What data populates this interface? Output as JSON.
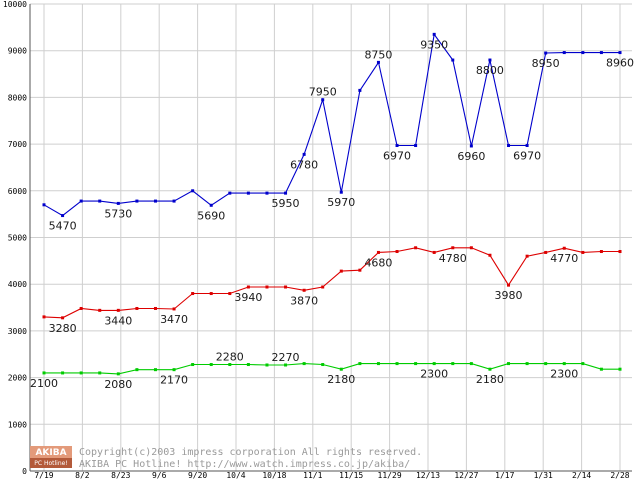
{
  "chart_data": {
    "type": "line",
    "ylim": [
      0,
      10000
    ],
    "yticks": [
      0,
      1000,
      2000,
      3000,
      4000,
      5000,
      6000,
      7000,
      8000,
      9000,
      10000
    ],
    "xticks": [
      "7/19",
      "8/2",
      "8/23",
      "9/6",
      "9/20",
      "10/4",
      "10/18",
      "11/1",
      "11/15",
      "11/29",
      "12/13",
      "12/27",
      "1/17",
      "1/31",
      "2/14",
      "2/28"
    ],
    "grid": true,
    "series": [
      {
        "color": "#0000cc",
        "values": [
          5700,
          5470,
          5780,
          5780,
          5730,
          5780,
          5780,
          5780,
          6000,
          5690,
          5950,
          5950,
          5950,
          5950,
          6780,
          7950,
          5970,
          8150,
          8750,
          6970,
          6970,
          9350,
          8800,
          6960,
          8800,
          6970,
          6970,
          8950,
          8960,
          8960,
          8960,
          8960
        ],
        "labels": [
          {
            "i": 1,
            "text": "5470",
            "pos": "below"
          },
          {
            "i": 4,
            "text": "5730",
            "pos": "below"
          },
          {
            "i": 9,
            "text": "5690",
            "pos": "below"
          },
          {
            "i": 13,
            "text": "5950",
            "pos": "below"
          },
          {
            "i": 14,
            "text": "6780",
            "pos": "below"
          },
          {
            "i": 15,
            "text": "7950",
            "pos": "above"
          },
          {
            "i": 16,
            "text": "5970",
            "pos": "below"
          },
          {
            "i": 18,
            "text": "8750",
            "pos": "above"
          },
          {
            "i": 19,
            "text": "6970",
            "pos": "below"
          },
          {
            "i": 21,
            "text": "9350",
            "pos": "below"
          },
          {
            "i": 23,
            "text": "6960",
            "pos": "below"
          },
          {
            "i": 24,
            "text": "8800",
            "pos": "below"
          },
          {
            "i": 26,
            "text": "6970",
            "pos": "below"
          },
          {
            "i": 27,
            "text": "8950",
            "pos": "below"
          },
          {
            "i": 31,
            "text": "8960",
            "pos": "below"
          }
        ]
      },
      {
        "color": "#dd0000",
        "values": [
          3300,
          3280,
          3480,
          3440,
          3440,
          3480,
          3480,
          3470,
          3800,
          3800,
          3800,
          3940,
          3940,
          3940,
          3870,
          3940,
          4280,
          4300,
          4680,
          4700,
          4780,
          4680,
          4780,
          4780,
          4620,
          3980,
          4600,
          4680,
          4770,
          4680,
          4700,
          4700
        ],
        "labels": [
          {
            "i": 1,
            "text": "3280",
            "pos": "below"
          },
          {
            "i": 4,
            "text": "3440",
            "pos": "below"
          },
          {
            "i": 7,
            "text": "3470",
            "pos": "below"
          },
          {
            "i": 11,
            "text": "3940",
            "pos": "below"
          },
          {
            "i": 14,
            "text": "3870",
            "pos": "below"
          },
          {
            "i": 18,
            "text": "4680",
            "pos": "below"
          },
          {
            "i": 22,
            "text": "4780",
            "pos": "below"
          },
          {
            "i": 25,
            "text": "3980",
            "pos": "below"
          },
          {
            "i": 28,
            "text": "4770",
            "pos": "below"
          }
        ]
      },
      {
        "color": "#00cc00",
        "values": [
          2100,
          2100,
          2100,
          2100,
          2080,
          2170,
          2170,
          2170,
          2280,
          2280,
          2280,
          2280,
          2270,
          2270,
          2300,
          2280,
          2180,
          2300,
          2300,
          2300,
          2300,
          2300,
          2300,
          2300,
          2180,
          2300,
          2300,
          2300,
          2300,
          2300,
          2180,
          2180
        ],
        "labels": [
          {
            "i": 0,
            "text": "2100",
            "pos": "below"
          },
          {
            "i": 4,
            "text": "2080",
            "pos": "below"
          },
          {
            "i": 7,
            "text": "2170",
            "pos": "below"
          },
          {
            "i": 10,
            "text": "2280",
            "pos": "above"
          },
          {
            "i": 13,
            "text": "2270",
            "pos": "above"
          },
          {
            "i": 16,
            "text": "2180",
            "pos": "below"
          },
          {
            "i": 21,
            "text": "2300",
            "pos": "below"
          },
          {
            "i": 24,
            "text": "2180",
            "pos": "below"
          },
          {
            "i": 28,
            "text": "2300",
            "pos": "below"
          }
        ]
      }
    ]
  },
  "copyright": {
    "line1": "Copyright(c)2003 impress corporation All rights reserved.",
    "line2": "AKIBA PC Hotline!  http://www.watch.impress.co.jp/akiba/"
  },
  "logo": {
    "top": "AKIBA",
    "bottom": "PC Hotline!"
  }
}
